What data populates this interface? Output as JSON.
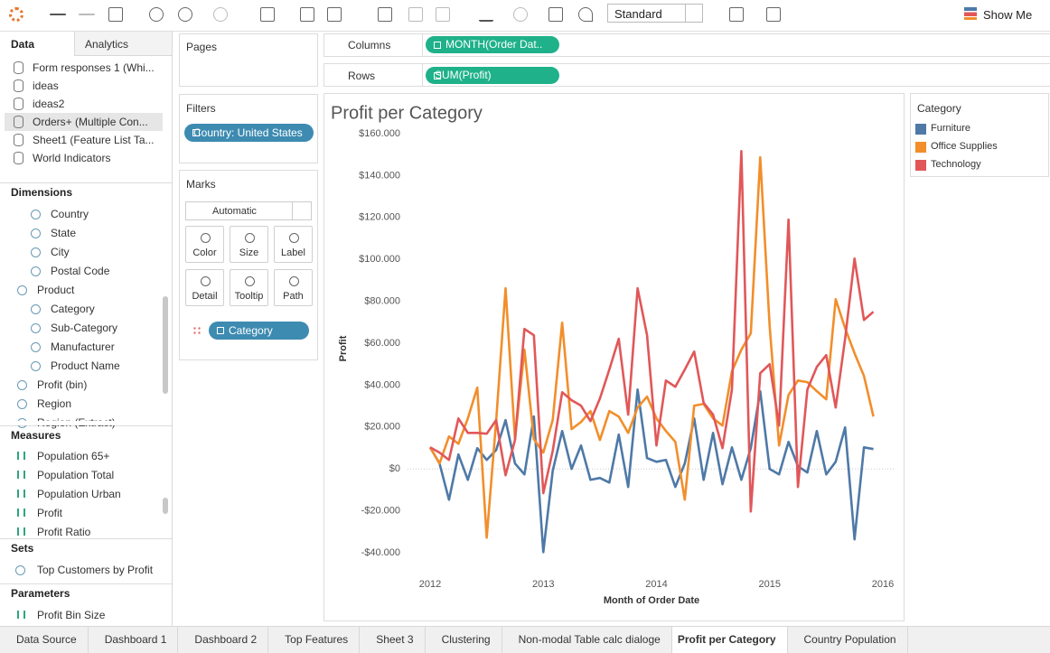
{
  "toolbar": {
    "fit": "Standard",
    "show_me": "Show Me"
  },
  "sidebar": {
    "tabs": [
      "Data",
      "Analytics"
    ],
    "sources": [
      "Form responses 1 (Whi...",
      "ideas",
      "ideas2",
      "Orders+ (Multiple Con...",
      "Sheet1 (Feature List Ta...",
      "World Indicators"
    ],
    "dimensions_title": "Dimensions",
    "dimensions": [
      "Country",
      "State",
      "City",
      "Postal Code",
      "Product",
      "Category",
      "Sub-Category",
      "Manufacturer",
      "Product Name",
      "Profit (bin)",
      "Region",
      "Region (Extract)"
    ],
    "measures_title": "Measures",
    "measures": [
      "Population 65+",
      "Population Total",
      "Population Urban",
      "Profit",
      "Profit Ratio"
    ],
    "sets_title": "Sets",
    "sets": [
      "Top Customers by Profit"
    ],
    "parameters_title": "Parameters",
    "parameters": [
      "Profit Bin Size"
    ]
  },
  "shelves": {
    "pages": "Pages",
    "filters": "Filters",
    "filter_pill": "Country: United States",
    "columns": "Columns",
    "columns_pill": "MONTH(Order Dat..",
    "rows": "Rows",
    "rows_pill": "SUM(Profit)"
  },
  "marks": {
    "title": "Marks",
    "mark_type": "Automatic",
    "buttons": [
      "Color",
      "Size",
      "Label",
      "Detail",
      "Tooltip",
      "Path"
    ],
    "pill": "Category"
  },
  "tabs": [
    "Data Source",
    "Dashboard 1",
    "Dashboard 2",
    "Top Features",
    "Sheet 3",
    "Clustering",
    "Non-modal Table calc dialoge",
    "Profit per Category",
    "Country Population"
  ],
  "active_tab": 7,
  "chart_data": {
    "type": "line",
    "title": "Profit per Category",
    "x_label": "Month of Order Date",
    "y_label": "Profit",
    "legend_title": "Category",
    "x": [
      2012,
      2012.0833,
      2012.1667,
      2012.25,
      2012.3333,
      2012.4167,
      2012.5,
      2012.5833,
      2012.6667,
      2012.75,
      2012.8333,
      2012.9167,
      2013,
      2013.0833,
      2013.1667,
      2013.25,
      2013.3333,
      2013.4167,
      2013.5,
      2013.5833,
      2013.6667,
      2013.75,
      2013.8333,
      2013.9167,
      2014,
      2014.0833,
      2014.1667,
      2014.25,
      2014.3333,
      2014.4167,
      2014.5,
      2014.5833,
      2014.6667,
      2014.75,
      2014.8333,
      2014.9167,
      2015,
      2015.0833,
      2015.1667,
      2015.25,
      2015.3333,
      2015.4167,
      2015.5,
      2015.5833,
      2015.6667,
      2015.75,
      2015.8333,
      2015.9167
    ],
    "series": [
      {
        "name": "Furniture",
        "color": "#4e79a7",
        "values": [
          10300,
          2600,
          -14700,
          6900,
          -5200,
          9900,
          4300,
          9000,
          23300,
          2600,
          -2600,
          25000,
          -39700,
          -900,
          18100,
          0,
          11200,
          -5200,
          -4300,
          -6500,
          16400,
          -8600,
          37900,
          5200,
          3400,
          4300,
          -8600,
          2600,
          24100,
          -5200,
          17200,
          -7300,
          10300,
          -5200,
          9900,
          37100,
          0,
          -2600,
          12900,
          1300,
          -1700,
          18100,
          -2600,
          3400,
          19800,
          -33600,
          10300,
          9500
        ]
      },
      {
        "name": "Office Supplies",
        "color": "#f28e2b",
        "values": [
          10300,
          2600,
          15500,
          12000,
          24100,
          38800,
          -32800,
          22800,
          86200,
          14200,
          56900,
          14200,
          7800,
          23300,
          69800,
          19000,
          22400,
          27600,
          13800,
          27600,
          25000,
          17200,
          29300,
          34500,
          24100,
          18100,
          12900,
          -14700,
          30200,
          31000,
          24100,
          20700,
          46600,
          56900,
          64700,
          148700,
          68100,
          11200,
          35300,
          42200,
          41400,
          37100,
          33200,
          81000,
          67200,
          55200,
          44400,
          25000
        ]
      },
      {
        "name": "Technology",
        "color": "#e15759",
        "values": [
          10300,
          7800,
          4300,
          24100,
          17200,
          17200,
          16800,
          23300,
          -3000,
          13800,
          66800,
          63800,
          -11600,
          8600,
          36600,
          32800,
          30200,
          22800,
          33600,
          47400,
          62100,
          25900,
          86200,
          63800,
          11200,
          42200,
          39200,
          47400,
          56000,
          31500,
          25900,
          9900,
          37900,
          151700,
          -20300,
          45700,
          50000,
          20700,
          119000,
          -8600,
          37900,
          48700,
          54300,
          29300,
          62100,
          100400,
          71100,
          75000
        ]
      }
    ],
    "xlim": [
      2012,
      2016
    ],
    "xticks": [
      2012,
      2013,
      2014,
      2015,
      2016
    ],
    "ylim": [
      -40000,
      160000
    ],
    "yticks": [
      {
        "value": -40000,
        "label": "-$40.000"
      },
      {
        "value": -20000,
        "label": "-$20.000"
      },
      {
        "value": 0,
        "label": "$0"
      },
      {
        "value": 20000,
        "label": "$20.000"
      },
      {
        "value": 40000,
        "label": "$40.000"
      },
      {
        "value": 60000,
        "label": "$60.000"
      },
      {
        "value": 80000,
        "label": "$80.000"
      },
      {
        "value": 100000,
        "label": "$100.000"
      },
      {
        "value": 120000,
        "label": "$120.000"
      },
      {
        "value": 140000,
        "label": "$140.000"
      },
      {
        "value": 160000,
        "label": "$160.000"
      }
    ],
    "grid": false,
    "zero_line": true
  }
}
